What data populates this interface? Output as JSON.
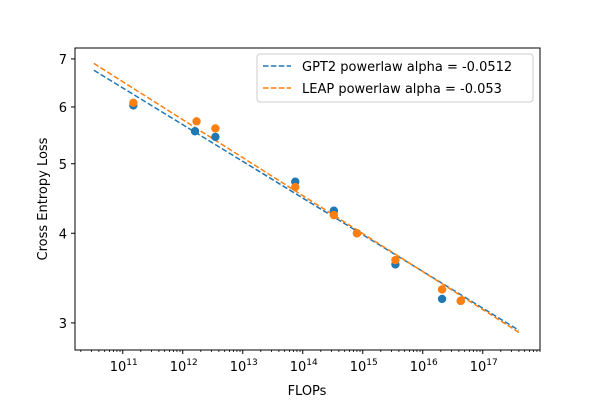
{
  "chart_data": {
    "type": "scatter",
    "xlabel": "FLOPs",
    "ylabel": "Cross Entropy Loss",
    "xscale": "log",
    "yscale": "log",
    "xlim": [
      16000000000.0,
      9e+17
    ],
    "ylim": [
      2.75,
      7.25
    ],
    "grid": false,
    "legend_position": "top-right",
    "x_ticks": [
      {
        "value": 100000000000.0,
        "base": "10",
        "exp": "11"
      },
      {
        "value": 1000000000000.0,
        "base": "10",
        "exp": "12"
      },
      {
        "value": 10000000000000.0,
        "base": "10",
        "exp": "13"
      },
      {
        "value": 100000000000000.0,
        "base": "10",
        "exp": "14"
      },
      {
        "value": 1000000000000000.0,
        "base": "10",
        "exp": "15"
      },
      {
        "value": 1e+16,
        "base": "10",
        "exp": "16"
      },
      {
        "value": 1e+17,
        "base": "10",
        "exp": "17"
      }
    ],
    "y_ticks": [
      {
        "value": 3,
        "label": "3"
      },
      {
        "value": 4,
        "label": "4"
      },
      {
        "value": 5,
        "label": "5"
      },
      {
        "value": 6,
        "label": "6"
      },
      {
        "value": 7,
        "label": "7"
      }
    ],
    "series": [
      {
        "name": "GPT2 powerlaw alpha = -0.0512",
        "color": "#1f77b4",
        "points": [
          {
            "x": 150000000000.0,
            "y": 6.03
          },
          {
            "x": 1600000000000.0,
            "y": 5.55
          },
          {
            "x": 3500000000000.0,
            "y": 5.45
          },
          {
            "x": 75000000000000.0,
            "y": 4.72
          },
          {
            "x": 330000000000000.0,
            "y": 4.3
          },
          {
            "x": 800000000000000.0,
            "y": 4.0
          },
          {
            "x": 3500000000000000.0,
            "y": 3.62
          },
          {
            "x": 2.1e+16,
            "y": 3.24
          },
          {
            "x": 4.3e+16,
            "y": 3.22
          }
        ],
        "fit_line": [
          {
            "x": 33000000000.0,
            "y": 6.75
          },
          {
            "x": 4e+17,
            "y": 2.93
          }
        ]
      },
      {
        "name": "LEAP powerlaw alpha = -0.053",
        "color": "#ff7f0e",
        "points": [
          {
            "x": 150000000000.0,
            "y": 6.08
          },
          {
            "x": 1700000000000.0,
            "y": 5.73
          },
          {
            "x": 3500000000000.0,
            "y": 5.6
          },
          {
            "x": 75000000000000.0,
            "y": 4.64
          },
          {
            "x": 330000000000000.0,
            "y": 4.24
          },
          {
            "x": 800000000000000.0,
            "y": 4.0
          },
          {
            "x": 3500000000000000.0,
            "y": 3.67
          },
          {
            "x": 2.1e+16,
            "y": 3.34
          },
          {
            "x": 4.3e+16,
            "y": 3.22
          }
        ],
        "fit_line": [
          {
            "x": 33000000000.0,
            "y": 6.9
          },
          {
            "x": 4e+17,
            "y": 2.91
          }
        ]
      }
    ]
  }
}
